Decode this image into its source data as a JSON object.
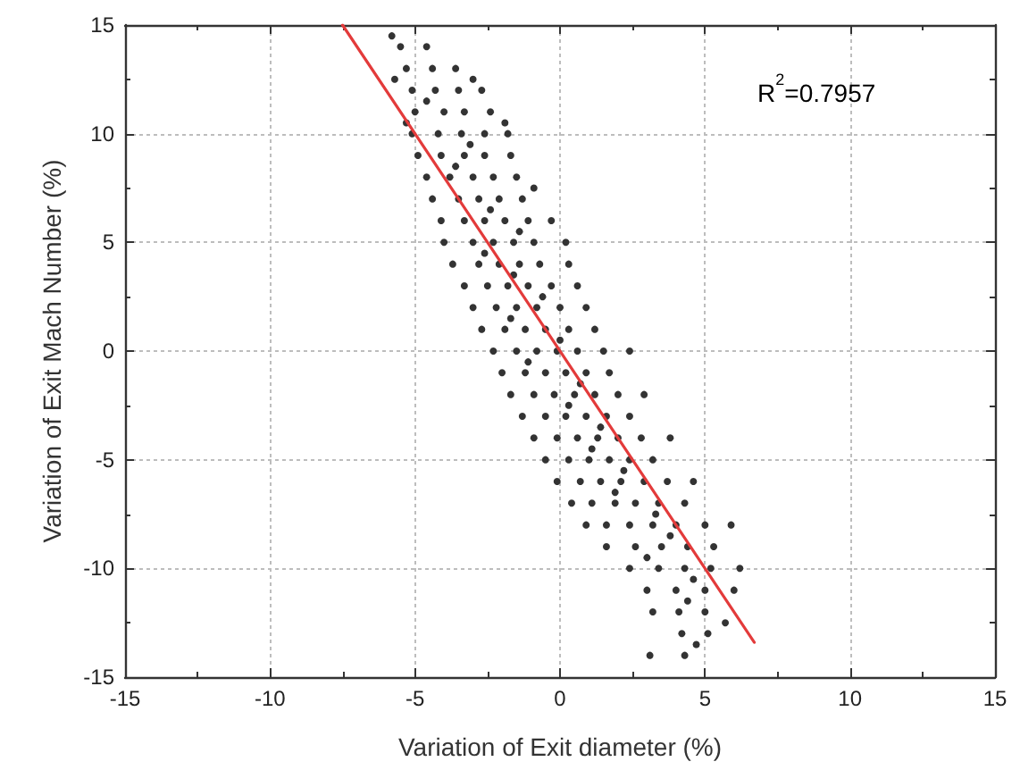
{
  "chart_data": {
    "type": "scatter",
    "xlabel": "Variation of Exit diameter (%)",
    "ylabel": "Variation of Exit Mach Number (%)",
    "annotations": [
      "R$^{2}$=0.7957"
    ],
    "xlim": [
      -15,
      15
    ],
    "ylim": [
      -15,
      15
    ],
    "xticks": [
      -15,
      {
        "value": -12.5,
        "label": null
      },
      -10,
      {
        "value": -7.5,
        "label": null
      },
      -5,
      {
        "value": -2.5,
        "label": null
      },
      0,
      {
        "value": 2.5,
        "label": null
      },
      5,
      {
        "value": 7.5,
        "label": null
      },
      10,
      {
        "value": 12.5,
        "label": null
      },
      15
    ],
    "yticks": [
      -15,
      {
        "value": -12.5,
        "label": null
      },
      -10,
      {
        "value": -7.5,
        "label": null
      },
      -5,
      {
        "value": -2.5,
        "label": null
      },
      0,
      {
        "value": 2.5,
        "label": null
      },
      5,
      {
        "value": 7.5,
        "label": null
      },
      10,
      {
        "value": 12.5,
        "label": null
      },
      15
    ],
    "grid": true,
    "series": [
      {
        "color": "#333333",
        "marker": "circle",
        "x": [
          -5.8,
          -5.5,
          -4.6,
          -5.3,
          -4.4,
          -3.6,
          -5.7,
          -3.0,
          -5.1,
          -4.3,
          -3.5,
          -2.7,
          -4.6,
          -5.0,
          -4.0,
          -3.3,
          -2.4,
          -5.3,
          -1.9,
          -5.1,
          -4.2,
          -3.4,
          -2.6,
          -1.8,
          -3.1,
          -4.9,
          -4.1,
          -3.3,
          -2.6,
          -1.7,
          -3.6,
          -4.6,
          -3.8,
          -3.0,
          -2.3,
          -1.5,
          -0.9,
          -4.4,
          -3.5,
          -2.8,
          -2.1,
          -1.3,
          -2.4,
          -4.1,
          -3.3,
          -2.6,
          -1.9,
          -1.1,
          -0.3,
          -1.4,
          -4.0,
          -3.0,
          -2.3,
          -1.6,
          -0.9,
          0.2,
          -2.6,
          -3.7,
          -2.8,
          -2.1,
          -1.4,
          -0.7,
          0.3,
          -1.6,
          -3.3,
          -2.5,
          -1.8,
          -1.1,
          -0.3,
          0.6,
          -0.6,
          -3.0,
          -2.2,
          -1.5,
          -0.8,
          0.0,
          0.9,
          -1.7,
          -2.7,
          -1.9,
          -1.2,
          -0.5,
          0.3,
          1.2,
          0.0,
          -2.3,
          -1.5,
          -0.8,
          -0.1,
          0.6,
          1.5,
          2.4,
          -1.1,
          -2.0,
          -1.2,
          -0.5,
          0.2,
          0.9,
          1.7,
          0.7,
          -1.7,
          -0.9,
          -0.2,
          0.5,
          1.2,
          2.0,
          2.9,
          0.3,
          -1.3,
          -0.5,
          0.2,
          0.9,
          1.6,
          2.4,
          1.4,
          -0.9,
          -0.1,
          0.6,
          1.3,
          2.0,
          2.8,
          3.8,
          1.1,
          -0.5,
          0.3,
          1.0,
          1.7,
          2.4,
          3.2,
          2.2,
          -0.1,
          0.7,
          1.4,
          2.1,
          2.9,
          3.7,
          4.6,
          1.9,
          0.4,
          1.1,
          1.9,
          2.6,
          3.4,
          4.3,
          3.3,
          0.9,
          1.6,
          2.4,
          3.2,
          4.0,
          5.0,
          5.9,
          3.8,
          1.6,
          2.6,
          3.5,
          4.4,
          5.3,
          3.0,
          2.4,
          3.4,
          4.3,
          5.2,
          6.2,
          4.6,
          3.0,
          4.0,
          5.0,
          6.0,
          4.4,
          3.2,
          4.1,
          5.0,
          5.7,
          4.2,
          5.1,
          4.7,
          3.1,
          4.3
        ],
        "values": [
          14.5,
          14,
          14,
          13,
          13,
          13,
          12.5,
          12.5,
          12,
          12,
          12,
          12,
          11.5,
          11,
          11,
          11,
          11,
          10.5,
          10.5,
          10,
          10,
          10,
          10,
          10,
          9.5,
          9,
          9,
          9,
          9,
          9,
          8.5,
          8,
          8,
          8,
          8,
          8,
          7.5,
          7,
          7,
          7,
          7,
          7,
          6.5,
          6,
          6,
          6,
          6,
          6,
          6,
          5.5,
          5,
          5,
          5,
          5,
          5,
          5,
          4.5,
          4,
          4,
          4,
          4,
          4,
          4,
          3.5,
          3,
          3,
          3,
          3,
          3,
          3,
          2.5,
          2,
          2,
          2,
          2,
          2,
          2,
          1.5,
          1,
          1,
          1,
          1,
          1,
          1,
          0.5,
          0,
          0,
          0,
          0,
          0,
          0,
          0,
          -0.5,
          -1,
          -1,
          -1,
          -1,
          -1,
          -1,
          -1.5,
          -2,
          -2,
          -2,
          -2,
          -2,
          -2,
          -2,
          -2.5,
          -3,
          -3,
          -3,
          -3,
          -3,
          -3,
          -3.5,
          -4,
          -4,
          -4,
          -4,
          -4,
          -4,
          -4,
          -4.5,
          -5,
          -5,
          -5,
          -5,
          -5,
          -5,
          -5.5,
          -6,
          -6,
          -6,
          -6,
          -6,
          -6,
          -6,
          -6.5,
          -7,
          -7,
          -7,
          -7,
          -7,
          -7,
          -7.5,
          -8,
          -8,
          -8,
          -8,
          -8,
          -8,
          -8,
          -8.5,
          -9,
          -9,
          -9,
          -9,
          -9,
          -9.5,
          -10,
          -10,
          -10,
          -10,
          -10,
          -10.5,
          -11,
          -11,
          -11,
          -11,
          -11.5,
          -12,
          -12,
          -12,
          -12.5,
          -13,
          -13,
          -13.5,
          -14,
          -14
        ]
      },
      {
        "type": "line",
        "color": "#e33b3b",
        "marker": "none",
        "line_style": "solid",
        "x": [
          -7.5,
          6.7
        ],
        "values": [
          15,
          -13.4
        ]
      }
    ]
  }
}
